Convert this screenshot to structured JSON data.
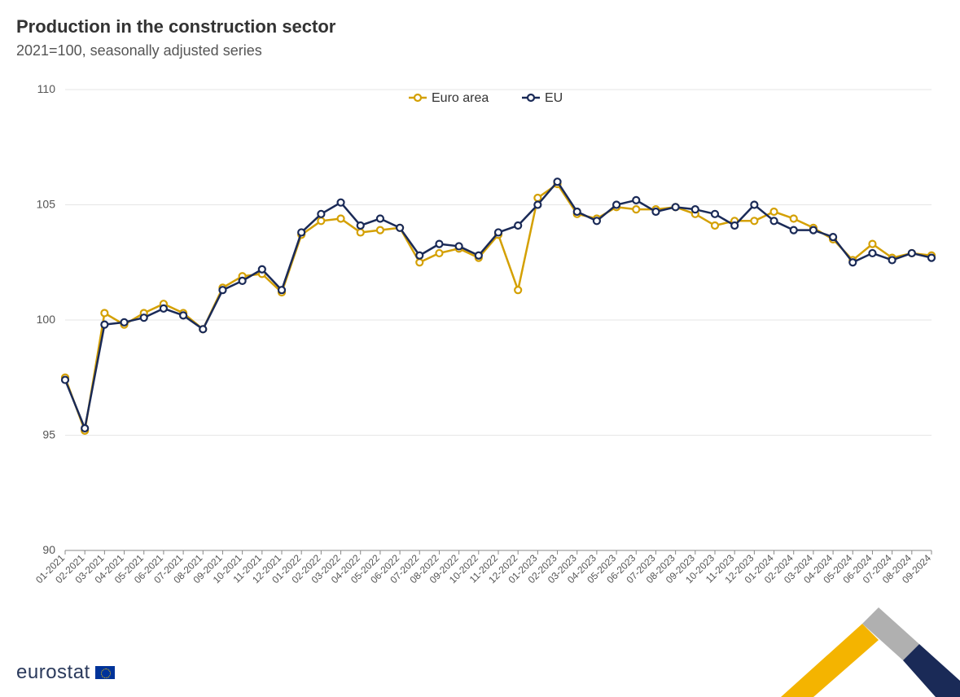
{
  "title": "Production in the construction sector",
  "subtitle": "2021=100, seasonally adjusted series",
  "footer_logo_text": "eurostat",
  "chart": {
    "type": "line",
    "background_color": "#ffffff",
    "grid_color": "#e6e6e6",
    "axis_color": "#888888",
    "tick_font_size": 12,
    "tick_color": "#555555",
    "title_font_size": 22,
    "subtitle_font_size": 18,
    "ylim": [
      90,
      110
    ],
    "yticks": [
      90,
      95,
      100,
      105,
      110
    ],
    "x_labels": [
      "01-2021",
      "02-2021",
      "03-2021",
      "04-2021",
      "05-2021",
      "06-2021",
      "07-2021",
      "08-2021",
      "09-2021",
      "10-2021",
      "11-2021",
      "12-2021",
      "01-2022",
      "02-2022",
      "03-2022",
      "04-2022",
      "05-2022",
      "06-2022",
      "07-2022",
      "08-2022",
      "09-2022",
      "10-2022",
      "11-2022",
      "12-2022",
      "01-2023",
      "02-2023",
      "03-2023",
      "04-2023",
      "05-2023",
      "06-2023",
      "07-2023",
      "08-2023",
      "09-2023",
      "10-2023",
      "11-2023",
      "12-2023",
      "01-2024",
      "02-2024",
      "03-2024",
      "04-2024",
      "05-2024",
      "06-2024",
      "07-2024",
      "08-2024",
      "09-2024"
    ],
    "x_label_rotation_deg": -45,
    "legend": {
      "position": "top-center",
      "font_size": 16,
      "items": [
        {
          "key": "euro_area",
          "label": "Euro area"
        },
        {
          "key": "eu",
          "label": "EU"
        }
      ]
    },
    "series": {
      "euro_area": {
        "label": "Euro area",
        "color": "#d4a003",
        "line_width": 2.5,
        "marker": "circle-open",
        "marker_size": 8,
        "marker_fill": "#ffffff",
        "values": [
          97.5,
          95.2,
          100.3,
          99.8,
          100.3,
          100.7,
          100.3,
          99.6,
          101.4,
          101.9,
          102.0,
          101.2,
          103.7,
          104.3,
          104.4,
          103.8,
          103.9,
          104.0,
          102.5,
          102.9,
          103.1,
          102.7,
          103.7,
          101.3,
          105.3,
          105.9,
          104.6,
          104.4,
          104.9,
          104.8,
          104.8,
          104.9,
          104.6,
          104.1,
          104.3,
          104.3,
          104.7,
          104.4,
          104.0,
          103.5,
          102.6,
          103.3,
          102.7,
          102.9,
          102.8
        ]
      },
      "eu": {
        "label": "EU",
        "color": "#1a2a57",
        "line_width": 2.5,
        "marker": "circle-open",
        "marker_size": 8,
        "marker_fill": "#ffffff",
        "values": [
          97.4,
          95.3,
          99.8,
          99.9,
          100.1,
          100.5,
          100.2,
          99.6,
          101.3,
          101.7,
          102.2,
          101.3,
          103.8,
          104.6,
          105.1,
          104.1,
          104.4,
          104.0,
          102.8,
          103.3,
          103.2,
          102.8,
          103.8,
          104.1,
          105.0,
          106.0,
          104.7,
          104.3,
          105.0,
          105.2,
          104.7,
          104.9,
          104.8,
          104.6,
          104.1,
          105.0,
          104.3,
          103.9,
          103.9,
          103.6,
          102.5,
          102.9,
          102.6,
          102.9,
          102.7
        ]
      }
    }
  },
  "decoration_colors": {
    "yellow": "#f4b400",
    "grey": "#b0b0b0",
    "navy": "#1a2a57"
  }
}
